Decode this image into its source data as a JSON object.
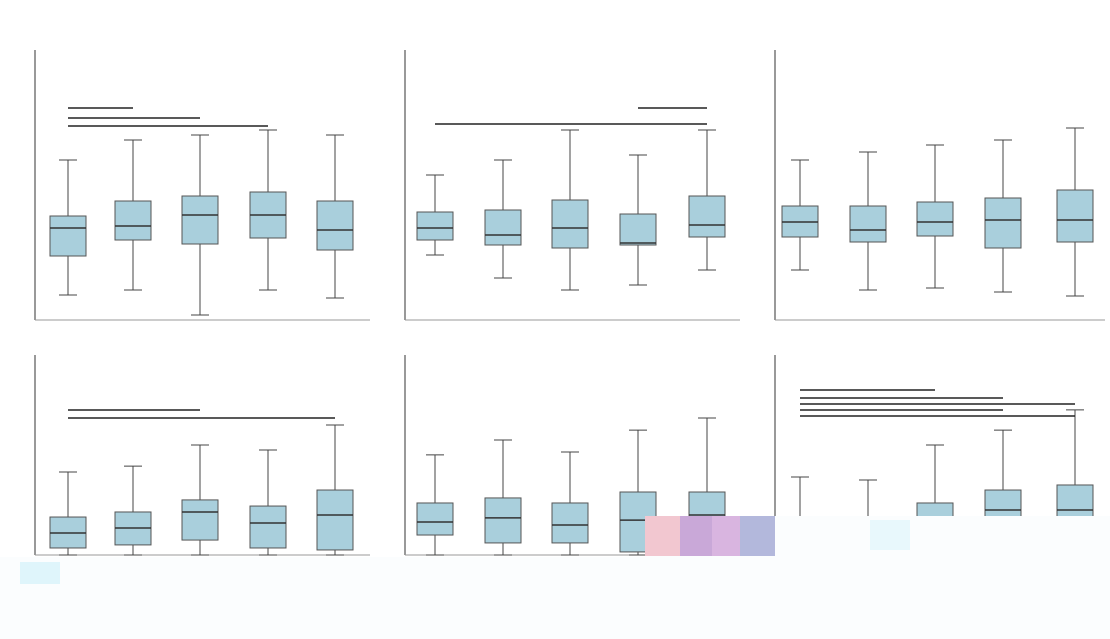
{
  "chart_data": [
    {
      "type": "box",
      "categories": [
        null,
        null,
        null,
        null,
        null
      ],
      "ylim": [
        0,
        10
      ],
      "color": "#a9cfdc",
      "min": [
        1.0,
        1.2,
        0.2,
        1.2,
        0.88
      ],
      "q1": [
        2.56,
        3.2,
        3.04,
        3.28,
        2.8
      ],
      "median": [
        3.68,
        3.76,
        4.2,
        4.2,
        3.6
      ],
      "q3": [
        4.16,
        4.76,
        4.96,
        5.12,
        4.76
      ],
      "max": [
        6.4,
        7.2,
        7.4,
        7.6,
        7.4
      ]
    },
    {
      "type": "box",
      "categories": [
        null,
        null,
        null,
        null,
        null
      ],
      "ylim": [
        0,
        10
      ],
      "color": "#a9cfdc",
      "min": [
        2.6,
        1.68,
        1.2,
        1.4,
        2.0
      ],
      "q1": [
        3.2,
        3.0,
        2.88,
        3.0,
        3.32
      ],
      "median": [
        3.68,
        3.4,
        3.68,
        3.08,
        3.8
      ],
      "q3": [
        4.32,
        4.4,
        4.8,
        4.24,
        4.96
      ],
      "max": [
        5.8,
        6.4,
        7.6,
        6.6,
        7.6
      ]
    },
    {
      "type": "box",
      "categories": [
        null,
        null,
        null,
        null,
        null
      ],
      "ylim": [
        0,
        10
      ],
      "color": "#a9cfdc",
      "min": [
        2.0,
        1.2,
        1.28,
        1.12,
        0.96
      ],
      "q1": [
        3.32,
        3.12,
        3.36,
        2.88,
        3.12
      ],
      "median": [
        3.92,
        3.6,
        3.92,
        4.0,
        4.0
      ],
      "q3": [
        4.56,
        4.56,
        4.72,
        4.88,
        5.2
      ],
      "max": [
        6.4,
        6.72,
        7.0,
        7.2,
        7.68
      ]
    },
    {
      "type": "box",
      "categories": [
        null,
        null,
        null,
        null,
        null
      ],
      "ylim": [
        0,
        10
      ],
      "color": "#a9cfdc",
      "min": [
        0,
        0,
        0,
        0,
        0
      ],
      "q1": [
        0.39,
        0.56,
        0.83,
        0.39,
        0.28
      ],
      "median": [
        1.22,
        1.5,
        2.39,
        1.78,
        2.22
      ],
      "q3": [
        2.11,
        2.39,
        3.06,
        2.72,
        3.61
      ],
      "max": [
        4.61,
        4.94,
        6.11,
        5.83,
        7.22
      ]
    },
    {
      "type": "box",
      "categories": [
        null,
        null,
        null,
        null,
        null
      ],
      "ylim": [
        0,
        10
      ],
      "color": "#a9cfdc",
      "min": [
        0,
        0,
        0,
        0,
        0
      ],
      "q1": [
        1.11,
        0.67,
        0.67,
        0.17,
        0.56
      ],
      "median": [
        1.83,
        2.06,
        1.67,
        1.94,
        2.22
      ],
      "q3": [
        2.89,
        3.17,
        2.89,
        3.5,
        3.5
      ],
      "max": [
        5.56,
        6.39,
        5.72,
        6.94,
        7.61
      ]
    },
    {
      "type": "box",
      "categories": [
        null,
        null,
        null,
        null,
        null
      ],
      "ylim": [
        0,
        10
      ],
      "color": "#a9cfdc",
      "min": [
        0,
        0,
        0,
        0,
        0
      ],
      "q1": [
        0.5,
        0.5,
        0.5,
        0.5,
        0.5
      ],
      "median": [
        1.0,
        1.0,
        1.5,
        2.5,
        2.5
      ],
      "q3": [
        1.5,
        1.5,
        2.89,
        3.61,
        3.89
      ],
      "max": [
        4.33,
        4.17,
        6.11,
        6.94,
        8.06
      ]
    }
  ]
}
